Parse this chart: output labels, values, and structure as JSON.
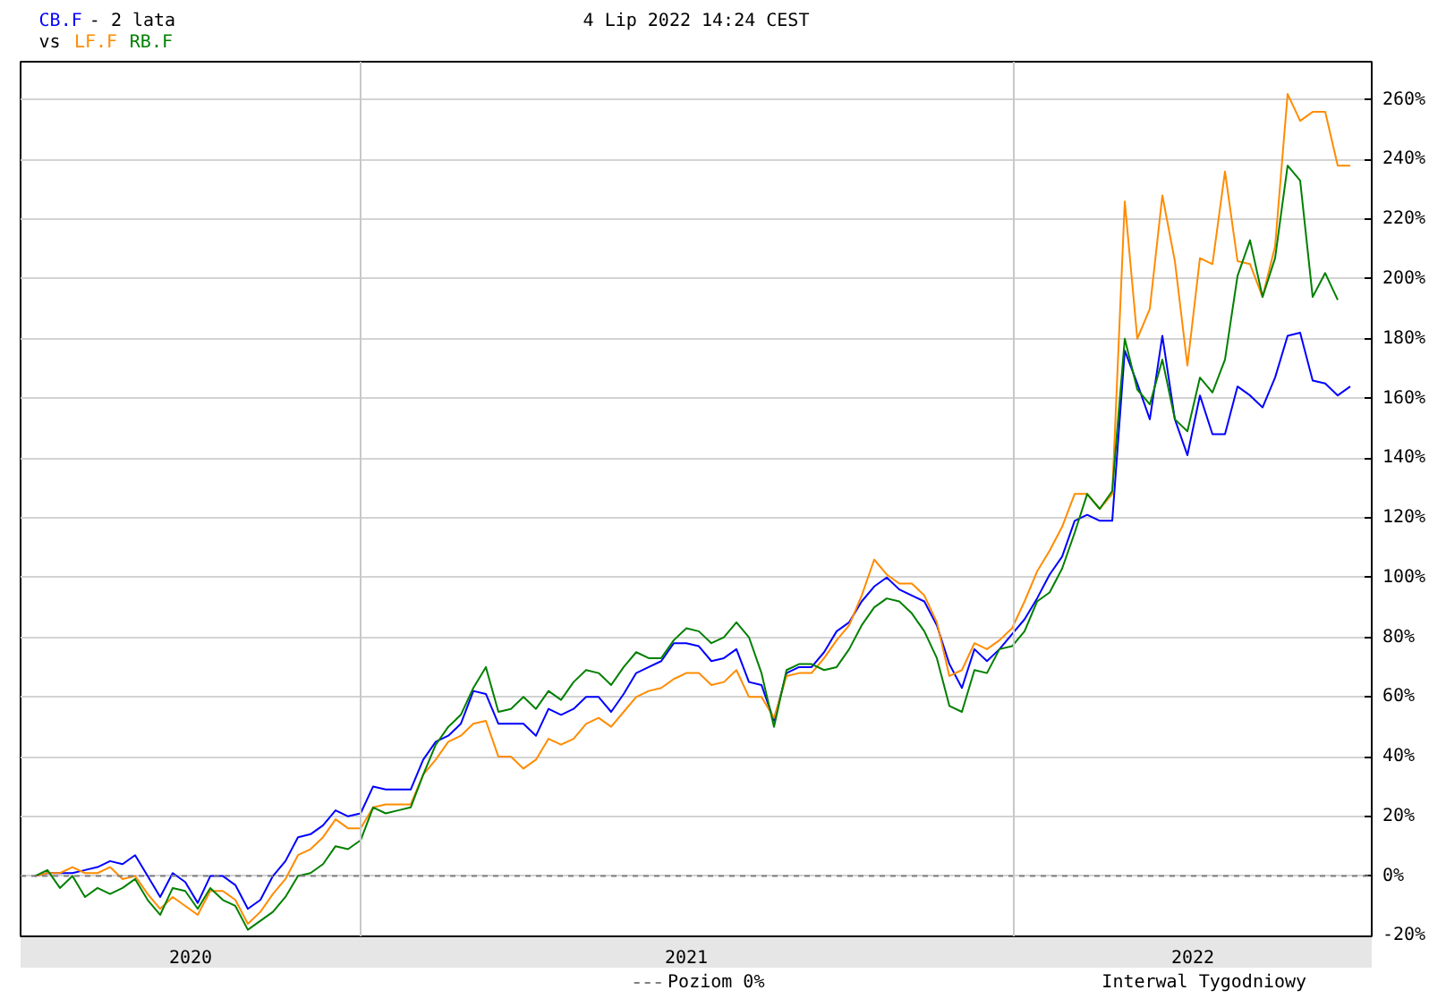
{
  "chart_data": {
    "type": "line",
    "title": "- 2 lata",
    "subtitle": "4 Lip 2022 14:24 CEST",
    "annotations": [
      "vs",
      "Interwal Tygodniowy"
    ],
    "legend": "bottom",
    "grid": "y",
    "xlim": [
      "2020-06-25",
      "2022-07-20"
    ],
    "xticks": [
      {
        "value": "2020-09-28",
        "label": "2020"
      },
      {
        "value": "2021-07-02",
        "label": "2021"
      },
      {
        "value": "2022-04-11",
        "label": "2022"
      }
    ],
    "ylim": [
      -20.2,
      272.8
    ],
    "yticks": [
      {
        "value": -20,
        "label": "-20%"
      },
      {
        "value": 0,
        "label": "0%"
      },
      {
        "value": 20,
        "label": "20%"
      },
      {
        "value": 40,
        "label": "40%"
      },
      {
        "value": 60,
        "label": "60%"
      },
      {
        "value": 80,
        "label": "80%"
      },
      {
        "value": 100,
        "label": "100%"
      },
      {
        "value": 120,
        "label": "120%"
      },
      {
        "value": 140,
        "label": "140%"
      },
      {
        "value": 160,
        "label": "160%"
      },
      {
        "value": 180,
        "label": "180%"
      },
      {
        "value": 200,
        "label": "200%"
      },
      {
        "value": 220,
        "label": "220%"
      },
      {
        "value": 240,
        "label": "240%"
      },
      {
        "value": 260,
        "label": "260%"
      }
    ],
    "ref_lines": [
      {
        "axis": "y",
        "value": 0,
        "label": "Poziom 0%",
        "color": "#808080",
        "line_style": "dashed"
      },
      {
        "axis": "x",
        "value": "2021-01-01",
        "color": "#c8c8c8"
      },
      {
        "axis": "x",
        "value": "2022-01-01",
        "color": "#c8c8c8"
      }
    ],
    "x": [
      "2020-07-03",
      "2020-07-10",
      "2020-07-17",
      "2020-07-24",
      "2020-07-31",
      "2020-08-07",
      "2020-08-14",
      "2020-08-21",
      "2020-08-28",
      "2020-09-04",
      "2020-09-11",
      "2020-09-18",
      "2020-09-25",
      "2020-10-02",
      "2020-10-09",
      "2020-10-16",
      "2020-10-23",
      "2020-10-30",
      "2020-11-06",
      "2020-11-13",
      "2020-11-20",
      "2020-11-27",
      "2020-12-04",
      "2020-12-11",
      "2020-12-18",
      "2020-12-25",
      "2021-01-01",
      "2021-01-08",
      "2021-01-15",
      "2021-01-22",
      "2021-01-29",
      "2021-02-05",
      "2021-02-12",
      "2021-02-19",
      "2021-02-26",
      "2021-03-05",
      "2021-03-12",
      "2021-03-19",
      "2021-03-26",
      "2021-04-02",
      "2021-04-09",
      "2021-04-16",
      "2021-04-23",
      "2021-04-30",
      "2021-05-07",
      "2021-05-14",
      "2021-05-21",
      "2021-05-28",
      "2021-06-04",
      "2021-06-11",
      "2021-06-18",
      "2021-06-25",
      "2021-07-02",
      "2021-07-09",
      "2021-07-16",
      "2021-07-23",
      "2021-07-30",
      "2021-08-06",
      "2021-08-13",
      "2021-08-20",
      "2021-08-27",
      "2021-09-03",
      "2021-09-10",
      "2021-09-17",
      "2021-09-24",
      "2021-10-01",
      "2021-10-08",
      "2021-10-15",
      "2021-10-22",
      "2021-10-29",
      "2021-11-05",
      "2021-11-12",
      "2021-11-19",
      "2021-11-26",
      "2021-12-03",
      "2021-12-10",
      "2021-12-17",
      "2021-12-24",
      "2021-12-31",
      "2022-01-07",
      "2022-01-14",
      "2022-01-21",
      "2022-01-28",
      "2022-02-04",
      "2022-02-11",
      "2022-02-18",
      "2022-02-25",
      "2022-03-04",
      "2022-03-11",
      "2022-03-18",
      "2022-03-25",
      "2022-04-01",
      "2022-04-08",
      "2022-04-15",
      "2022-04-22",
      "2022-04-29",
      "2022-05-06",
      "2022-05-13",
      "2022-05-20",
      "2022-05-27",
      "2022-06-03",
      "2022-06-10",
      "2022-06-17",
      "2022-06-24",
      "2022-07-01",
      "2022-07-08"
    ],
    "series": [
      {
        "name": "CB.F",
        "color": "#0000ff",
        "values": [
          0,
          1,
          1,
          1,
          2,
          3,
          5,
          4,
          7,
          0,
          -7,
          1,
          -2,
          -9,
          0,
          0,
          -3,
          -11,
          -8,
          0,
          5,
          13,
          14,
          17,
          22,
          20,
          21,
          30,
          29,
          29,
          29,
          39,
          45,
          47,
          51,
          62,
          61,
          51,
          51,
          51,
          47,
          56,
          54,
          56,
          60,
          60,
          55,
          61,
          68,
          70,
          72,
          78,
          78,
          77,
          72,
          73,
          76,
          65,
          64,
          52,
          68,
          70,
          70,
          75,
          82,
          85,
          92,
          97,
          100,
          96,
          94,
          92,
          84,
          71,
          63,
          76,
          72,
          76,
          81,
          86,
          93,
          101,
          107,
          119,
          121,
          119,
          119,
          176,
          165,
          153,
          181,
          153,
          141,
          161,
          148,
          148,
          164,
          161,
          157,
          167,
          181,
          182,
          166,
          165,
          161,
          164
        ]
      },
      {
        "name": "LF.F",
        "color": "#ff8c00",
        "values": [
          0,
          1,
          1,
          3,
          1,
          1,
          3,
          -1,
          0,
          -6,
          -11,
          -7,
          -10,
          -13,
          -5,
          -5,
          -8,
          -16,
          -12,
          -6,
          -1,
          7,
          9,
          13,
          19,
          16,
          16,
          23,
          24,
          24,
          24,
          34,
          39,
          45,
          47,
          51,
          52,
          40,
          40,
          36,
          39,
          46,
          44,
          46,
          51,
          53,
          50,
          55,
          60,
          62,
          63,
          66,
          68,
          68,
          64,
          65,
          69,
          60,
          60,
          53,
          67,
          68,
          68,
          73,
          79,
          84,
          94,
          106,
          101,
          98,
          98,
          94,
          85,
          67,
          69,
          78,
          76,
          79,
          83,
          92,
          102,
          109,
          117,
          128,
          128,
          123,
          128,
          226,
          180,
          190,
          228,
          206,
          171,
          207,
          205,
          236,
          206,
          205,
          194,
          211,
          262,
          253,
          256,
          256,
          238,
          238
        ]
      },
      {
        "name": "RB.F",
        "color": "#008000",
        "values": [
          0,
          2,
          -4,
          0,
          -7,
          -4,
          -6,
          -4,
          -1,
          -8,
          -13,
          -4,
          -5,
          -11,
          -4,
          -8,
          -10,
          -18,
          -15,
          -12,
          -7,
          0,
          1,
          4,
          10,
          9,
          12,
          23,
          21,
          22,
          23,
          34,
          44,
          50,
          54,
          63,
          70,
          55,
          56,
          60,
          56,
          62,
          59,
          65,
          69,
          68,
          64,
          70,
          75,
          73,
          73,
          79,
          83,
          82,
          78,
          80,
          85,
          80,
          68,
          50,
          69,
          71,
          71,
          69,
          70,
          76,
          84,
          90,
          93,
          92,
          88,
          82,
          73,
          57,
          55,
          69,
          68,
          76,
          77,
          82,
          92,
          95,
          103,
          115,
          128,
          123,
          129,
          180,
          163,
          158,
          173,
          153,
          149,
          167,
          162,
          173,
          201,
          213,
          194,
          207,
          238,
          233,
          194,
          202,
          193,
          null
        ]
      }
    ]
  }
}
